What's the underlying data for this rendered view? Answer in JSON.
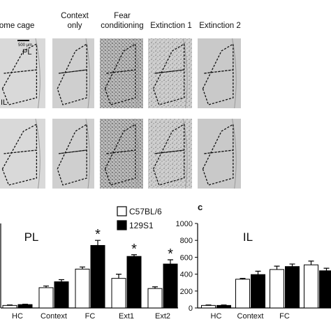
{
  "headers": [
    [
      "Home cage"
    ],
    [
      "Context",
      "only"
    ],
    [
      "Fear",
      "conditioning"
    ],
    [
      "Extinction 1"
    ],
    [
      "Extinction 2"
    ]
  ],
  "image_labels": {
    "pl": "PL",
    "il": "IL",
    "scale": "500 µm"
  },
  "chart_data": [
    {
      "type": "bar",
      "title": "PL",
      "categories": [
        "HC",
        "Context",
        "FC",
        "Ext1",
        "Ext2"
      ],
      "ylim": [
        0,
        1000
      ],
      "series": [
        {
          "name": "C57BL/6",
          "color": "#ffffff",
          "values": [
            30,
            240,
            460,
            350,
            230
          ],
          "errors": [
            5,
            20,
            25,
            50,
            20
          ]
        },
        {
          "name": "129S1",
          "color": "#000000",
          "values": [
            40,
            310,
            740,
            610,
            520
          ],
          "errors": [
            5,
            25,
            60,
            20,
            50
          ]
        }
      ],
      "annotations": [
        {
          "text": "*",
          "category": "FC"
        },
        {
          "text": "*",
          "category": "Ext1"
        },
        {
          "text": "*",
          "category": "Ext2"
        }
      ]
    },
    {
      "type": "bar",
      "panel_label": "c",
      "title": "IL",
      "categories": [
        "HC",
        "Context",
        "FC",
        null
      ],
      "ylim": [
        0,
        1000
      ],
      "yticks": [
        0,
        200,
        400,
        600,
        800,
        1000
      ],
      "series": [
        {
          "name": "C57BL/6",
          "color": "#ffffff",
          "values": [
            30,
            340,
            455,
            510
          ],
          "errors": [
            5,
            10,
            40,
            45
          ]
        },
        {
          "name": "129S1",
          "color": "#000000",
          "values": [
            30,
            395,
            490,
            440
          ],
          "errors": [
            5,
            40,
            30,
            30
          ]
        }
      ]
    }
  ]
}
